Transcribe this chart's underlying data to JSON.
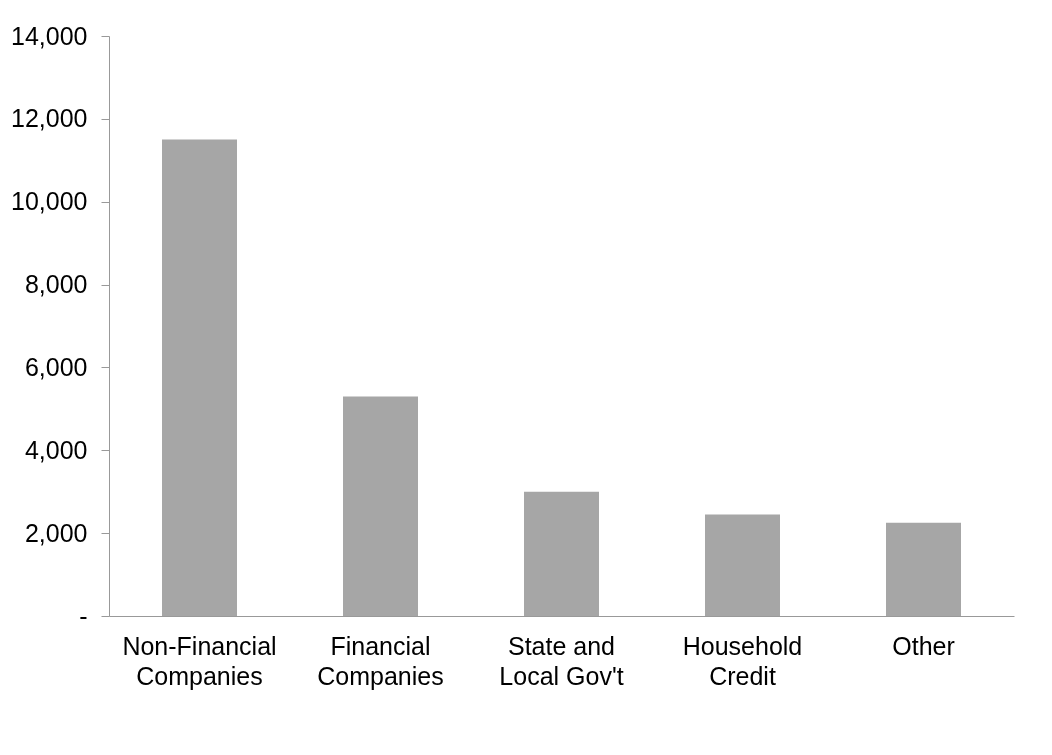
{
  "chart_data": {
    "type": "bar",
    "categories": [
      "Non-Financial Companies",
      "Financial Companies",
      "State and Local Gov't",
      "Household Credit",
      "Other"
    ],
    "values": [
      11500,
      5300,
      3000,
      2450,
      2250
    ],
    "color": "#a6a6a6",
    "ylim": [
      0,
      14000
    ],
    "yticks": [
      {
        "value": 0,
        "label": "-"
      },
      {
        "value": 2000,
        "label": "2,000"
      },
      {
        "value": 4000,
        "label": "4,000"
      },
      {
        "value": 6000,
        "label": "6,000"
      },
      {
        "value": 8000,
        "label": "8,000"
      },
      {
        "value": 10000,
        "label": "10,000"
      },
      {
        "value": 12000,
        "label": "12,000"
      },
      {
        "value": 14000,
        "label": "14,000"
      }
    ],
    "grid": false
  }
}
